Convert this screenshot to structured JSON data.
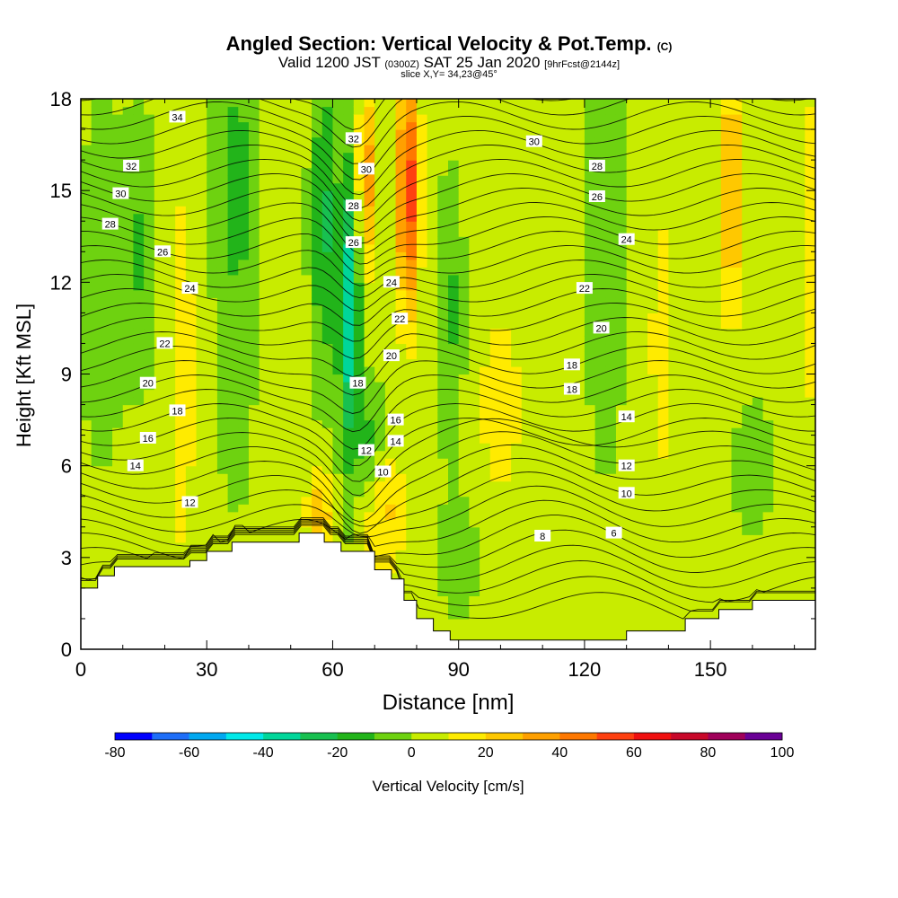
{
  "title": {
    "main": "Angled Section: Vertical Velocity & Pot.Temp.",
    "unit_tag": "(C)",
    "valid_prefix": "Valid 1200 JST",
    "valid_z": "(0300Z)",
    "valid_date": "SAT 25 Jan 2020",
    "forecast": "[9hrFcst@2144z]",
    "slice": "slice X,Y= 34,23@45°"
  },
  "chart_data": {
    "type": "heatmap",
    "xlabel": "Distance [nm]",
    "ylabel": "Height [Kft MSL]",
    "xlim": [
      0,
      175
    ],
    "ylim": [
      0,
      18
    ],
    "x_ticks": [
      0,
      30,
      60,
      90,
      120,
      150
    ],
    "y_ticks": [
      0,
      3,
      6,
      9,
      12,
      15,
      18
    ],
    "colorbar": {
      "label": "Vertical Velocity [cm/s]",
      "ticks": [
        -80,
        -60,
        -40,
        -20,
        0,
        20,
        40,
        60,
        80,
        100
      ],
      "bounds": [
        -80,
        -70,
        -60,
        -50,
        -40,
        -30,
        -20,
        -10,
        0,
        10,
        20,
        30,
        40,
        50,
        60,
        70,
        80,
        90,
        100
      ],
      "colors": [
        "#0000ff",
        "#1e6ef8",
        "#00a8f0",
        "#00e8e8",
        "#00d69a",
        "#18c050",
        "#22b41a",
        "#6ed210",
        "#c8ec00",
        "#ffeb00",
        "#ffc800",
        "#ffa000",
        "#ff7800",
        "#ff4010",
        "#f01010",
        "#c8082a",
        "#a0005a",
        "#6a0096"
      ]
    },
    "vertical_velocity_cm_s": {
      "note": "approximate field: x in nm, z in kft, value in cm/s",
      "background": 3,
      "features": [
        {
          "x": 5,
          "z": 12,
          "sx": 5,
          "sz": 6,
          "v": -9
        },
        {
          "x": 14,
          "z": 13,
          "sx": 4,
          "sz": 4,
          "v": -14
        },
        {
          "x": 24,
          "z": 9,
          "sx": 3,
          "sz": 6,
          "v": 16
        },
        {
          "x": 37,
          "z": 15,
          "sx": 5,
          "sz": 5,
          "v": -18
        },
        {
          "x": 37,
          "z": 7,
          "sx": 4,
          "sz": 3,
          "v": -6
        },
        {
          "x": 58,
          "z": 14,
          "sx": 3,
          "sz": 5,
          "v": -25
        },
        {
          "x": 64,
          "z": 11,
          "sx": 2.5,
          "sz": 5,
          "v": -40
        },
        {
          "x": 69,
          "z": 6.5,
          "sx": 3,
          "sz": 2,
          "v": -18
        },
        {
          "x": 68,
          "z": 15.5,
          "sx": 2,
          "sz": 3,
          "v": 35
        },
        {
          "x": 78,
          "z": 15,
          "sx": 2.5,
          "sz": 4,
          "v": 55
        },
        {
          "x": 72,
          "z": 4.5,
          "sx": 5,
          "sz": 2,
          "v": 20
        },
        {
          "x": 57,
          "z": 4.5,
          "sx": 3,
          "sz": 1.5,
          "v": 25
        },
        {
          "x": 88,
          "z": 11,
          "sx": 3,
          "sz": 4,
          "v": -15
        },
        {
          "x": 90,
          "z": 3,
          "sx": 5,
          "sz": 2,
          "v": -8
        },
        {
          "x": 100,
          "z": 8,
          "sx": 5,
          "sz": 3,
          "v": 15
        },
        {
          "x": 125,
          "z": 13,
          "sx": 4,
          "sz": 6,
          "v": -14
        },
        {
          "x": 138,
          "z": 10,
          "sx": 3,
          "sz": 7,
          "v": 10
        },
        {
          "x": 155,
          "z": 15,
          "sx": 3,
          "sz": 4,
          "v": 30
        },
        {
          "x": 160,
          "z": 6,
          "sx": 5,
          "sz": 2,
          "v": -10
        },
        {
          "x": 175,
          "z": 13,
          "sx": 3,
          "sz": 5,
          "v": 20
        }
      ]
    },
    "terrain_kft": [
      [
        0,
        2.0
      ],
      [
        4,
        2.0
      ],
      [
        4,
        2.4
      ],
      [
        8,
        2.4
      ],
      [
        8,
        2.7
      ],
      [
        26,
        2.7
      ],
      [
        26,
        2.9
      ],
      [
        30,
        2.9
      ],
      [
        30,
        3.2
      ],
      [
        36,
        3.2
      ],
      [
        36,
        3.5
      ],
      [
        52,
        3.5
      ],
      [
        52,
        3.8
      ],
      [
        58,
        3.8
      ],
      [
        58,
        3.5
      ],
      [
        62,
        3.5
      ],
      [
        62,
        3.2
      ],
      [
        70,
        3.2
      ],
      [
        70,
        2.6
      ],
      [
        74,
        2.6
      ],
      [
        74,
        2.3
      ],
      [
        77,
        2.3
      ],
      [
        77,
        1.6
      ],
      [
        80,
        1.6
      ],
      [
        80,
        1.0
      ],
      [
        84,
        1.0
      ],
      [
        84,
        0.6
      ],
      [
        88,
        0.6
      ],
      [
        88,
        0.3
      ],
      [
        130,
        0.3
      ],
      [
        130,
        0.6
      ],
      [
        144,
        0.6
      ],
      [
        144,
        1.0
      ],
      [
        152,
        1.0
      ],
      [
        152,
        1.3
      ],
      [
        160,
        1.3
      ],
      [
        160,
        1.6
      ],
      [
        175,
        1.6
      ]
    ],
    "isentrope_labels": [
      {
        "text": "34",
        "x": 23,
        "z": 17.4
      },
      {
        "text": "32",
        "x": 12,
        "z": 15.8
      },
      {
        "text": "30",
        "x": 9.5,
        "z": 14.9
      },
      {
        "text": "28",
        "x": 7,
        "z": 13.9
      },
      {
        "text": "26",
        "x": 19.5,
        "z": 13.0
      },
      {
        "text": "24",
        "x": 26,
        "z": 11.8
      },
      {
        "text": "22",
        "x": 20,
        "z": 10.0
      },
      {
        "text": "20",
        "x": 16,
        "z": 8.7
      },
      {
        "text": "18",
        "x": 23,
        "z": 7.8
      },
      {
        "text": "16",
        "x": 16,
        "z": 6.9
      },
      {
        "text": "14",
        "x": 13,
        "z": 6.0
      },
      {
        "text": "12",
        "x": 26,
        "z": 4.8
      },
      {
        "text": "32",
        "x": 65,
        "z": 16.7
      },
      {
        "text": "30",
        "x": 68,
        "z": 15.7
      },
      {
        "text": "28",
        "x": 65,
        "z": 14.5
      },
      {
        "text": "26",
        "x": 65,
        "z": 13.3
      },
      {
        "text": "24",
        "x": 74,
        "z": 12.0
      },
      {
        "text": "22",
        "x": 76,
        "z": 10.8
      },
      {
        "text": "20",
        "x": 74,
        "z": 9.6
      },
      {
        "text": "18",
        "x": 66,
        "z": 8.7
      },
      {
        "text": "16",
        "x": 75,
        "z": 7.5
      },
      {
        "text": "14",
        "x": 75,
        "z": 6.8
      },
      {
        "text": "12",
        "x": 68,
        "z": 6.5
      },
      {
        "text": "10",
        "x": 72,
        "z": 5.8
      },
      {
        "text": "30",
        "x": 108,
        "z": 16.6
      },
      {
        "text": "28",
        "x": 123,
        "z": 15.8
      },
      {
        "text": "26",
        "x": 123,
        "z": 14.8
      },
      {
        "text": "24",
        "x": 130,
        "z": 13.4
      },
      {
        "text": "22",
        "x": 120,
        "z": 11.8
      },
      {
        "text": "20",
        "x": 124,
        "z": 10.5
      },
      {
        "text": "18",
        "x": 117,
        "z": 9.3
      },
      {
        "text": "18",
        "x": 117,
        "z": 8.5
      },
      {
        "text": "14",
        "x": 130,
        "z": 7.6
      },
      {
        "text": "12",
        "x": 130,
        "z": 6.0
      },
      {
        "text": "10",
        "x": 130,
        "z": 5.1
      },
      {
        "text": "8",
        "x": 110,
        "z": 3.7
      },
      {
        "text": "6",
        "x": 127,
        "z": 3.8
      }
    ]
  }
}
